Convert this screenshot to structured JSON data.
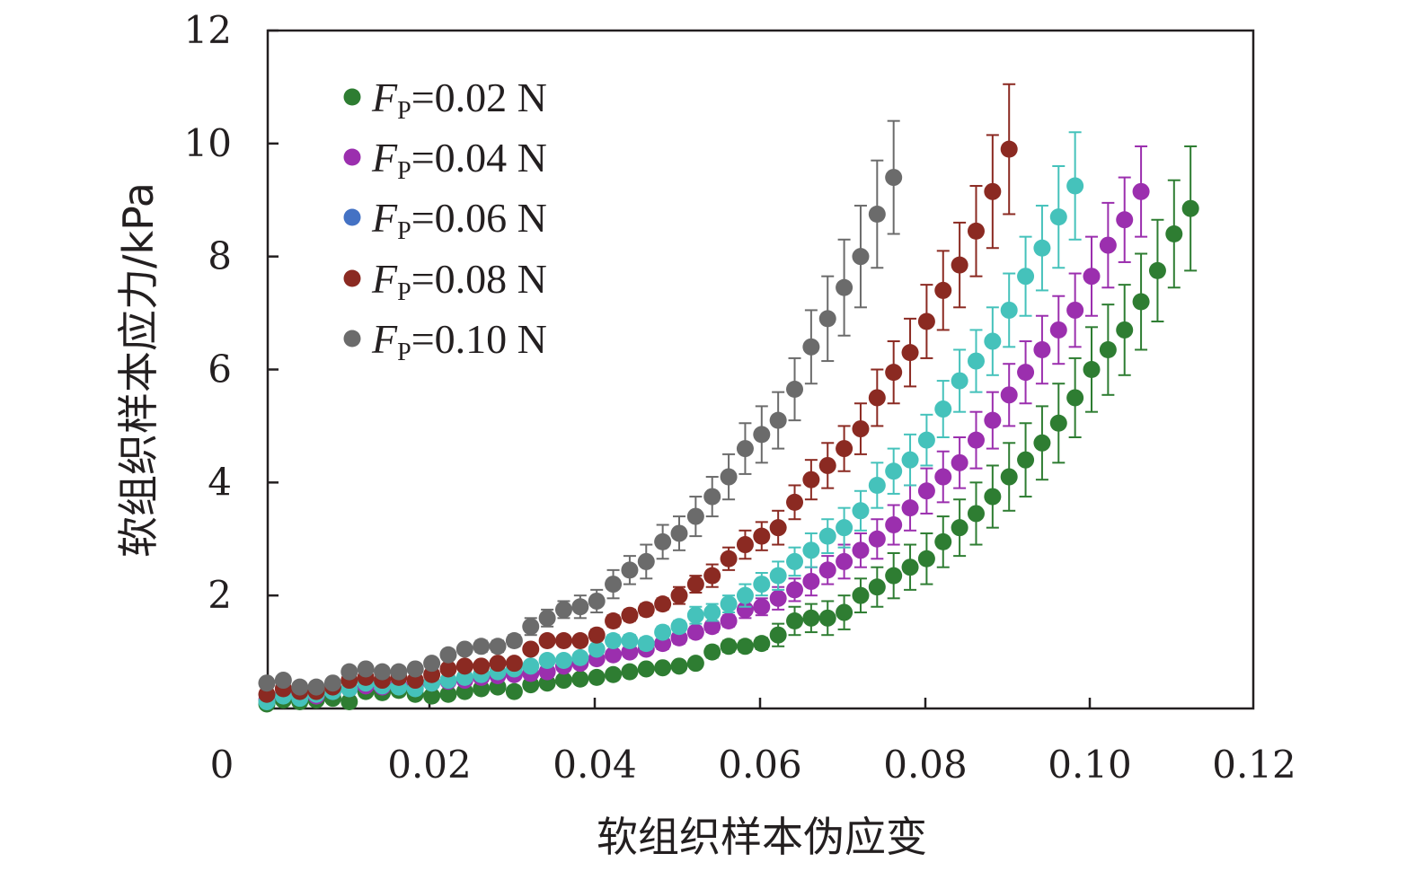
{
  "chart_data": {
    "type": "scatter",
    "title": "",
    "xlabel": "软组织样本伪应变",
    "ylabel": "软组织样本应力/kPa",
    "xlim": [
      0,
      0.12
    ],
    "ylim": [
      0,
      12
    ],
    "x_ticks": [
      "0",
      "0.02",
      "0.04",
      "0.06",
      "0.08",
      "0.10",
      "0.12"
    ],
    "y_ticks": [
      "2",
      "4",
      "6",
      "8",
      "10",
      "12"
    ],
    "legend_position": "top-left",
    "grid": false,
    "series": [
      {
        "name": "0.02 N",
        "legend_prefix": "F",
        "legend_sub": "P",
        "color": "#2e7d32",
        "x": [
          0.0,
          0.002,
          0.004,
          0.006,
          0.008,
          0.01,
          0.012,
          0.014,
          0.016,
          0.018,
          0.02,
          0.022,
          0.024,
          0.026,
          0.028,
          0.03,
          0.032,
          0.034,
          0.036,
          0.038,
          0.04,
          0.042,
          0.044,
          0.046,
          0.048,
          0.05,
          0.052,
          0.054,
          0.056,
          0.058,
          0.06,
          0.062,
          0.064,
          0.066,
          0.068,
          0.07,
          0.072,
          0.074,
          0.076,
          0.078,
          0.08,
          0.082,
          0.084,
          0.086,
          0.088,
          0.09,
          0.092,
          0.094,
          0.096,
          0.098,
          0.1,
          0.102,
          0.104,
          0.106,
          0.108,
          0.11,
          0.112
        ],
        "y": [
          0.08,
          0.15,
          0.12,
          0.15,
          0.18,
          0.12,
          0.3,
          0.28,
          0.32,
          0.25,
          0.22,
          0.25,
          0.3,
          0.35,
          0.38,
          0.3,
          0.42,
          0.45,
          0.5,
          0.52,
          0.55,
          0.6,
          0.65,
          0.7,
          0.72,
          0.75,
          0.8,
          1.0,
          1.1,
          1.1,
          1.15,
          1.3,
          1.55,
          1.6,
          1.6,
          1.7,
          2.0,
          2.15,
          2.35,
          2.5,
          2.65,
          2.95,
          3.2,
          3.45,
          3.75,
          4.1,
          4.4,
          4.7,
          5.05,
          5.5,
          6.0,
          6.35,
          6.7,
          7.2,
          7.75,
          8.4,
          8.85
        ],
        "err": [
          0.05,
          0.05,
          0.05,
          0.05,
          0.05,
          0.05,
          0.05,
          0.05,
          0.05,
          0.05,
          0.05,
          0.05,
          0.05,
          0.05,
          0.05,
          0.05,
          0.05,
          0.05,
          0.05,
          0.05,
          0.05,
          0.05,
          0.05,
          0.05,
          0.05,
          0.05,
          0.08,
          0.1,
          0.1,
          0.1,
          0.1,
          0.2,
          0.25,
          0.25,
          0.3,
          0.3,
          0.3,
          0.35,
          0.4,
          0.4,
          0.45,
          0.45,
          0.5,
          0.55,
          0.55,
          0.6,
          0.65,
          0.65,
          0.7,
          0.7,
          0.75,
          0.8,
          0.8,
          0.85,
          0.9,
          0.95,
          1.1
        ]
      },
      {
        "name": "0.04 N",
        "legend_prefix": "F",
        "legend_sub": "P",
        "color": "#9b2fae",
        "x": [
          0.0,
          0.002,
          0.004,
          0.006,
          0.008,
          0.01,
          0.012,
          0.014,
          0.016,
          0.018,
          0.02,
          0.022,
          0.024,
          0.026,
          0.028,
          0.03,
          0.032,
          0.034,
          0.036,
          0.038,
          0.04,
          0.042,
          0.044,
          0.046,
          0.048,
          0.05,
          0.052,
          0.054,
          0.056,
          0.058,
          0.06,
          0.062,
          0.064,
          0.066,
          0.068,
          0.07,
          0.072,
          0.074,
          0.076,
          0.078,
          0.08,
          0.082,
          0.084,
          0.086,
          0.088,
          0.09,
          0.092,
          0.094,
          0.096,
          0.098,
          0.1,
          0.102,
          0.104,
          0.106
        ],
        "y": [
          0.15,
          0.25,
          0.2,
          0.22,
          0.3,
          0.35,
          0.4,
          0.38,
          0.42,
          0.4,
          0.45,
          0.48,
          0.5,
          0.55,
          0.58,
          0.6,
          0.62,
          0.65,
          0.75,
          0.8,
          0.88,
          0.95,
          1.0,
          1.05,
          1.15,
          1.25,
          1.35,
          1.45,
          1.55,
          1.75,
          1.8,
          1.95,
          2.1,
          2.25,
          2.45,
          2.6,
          2.8,
          3.0,
          3.25,
          3.55,
          3.85,
          4.1,
          4.35,
          4.75,
          5.1,
          5.55,
          5.95,
          6.35,
          6.7,
          7.05,
          7.65,
          8.2,
          8.65,
          9.15
        ],
        "err": [
          0.05,
          0.05,
          0.05,
          0.05,
          0.05,
          0.05,
          0.05,
          0.05,
          0.05,
          0.05,
          0.05,
          0.05,
          0.05,
          0.05,
          0.05,
          0.05,
          0.05,
          0.05,
          0.05,
          0.05,
          0.05,
          0.05,
          0.05,
          0.05,
          0.1,
          0.1,
          0.1,
          0.1,
          0.1,
          0.15,
          0.15,
          0.2,
          0.2,
          0.25,
          0.25,
          0.3,
          0.3,
          0.35,
          0.35,
          0.4,
          0.4,
          0.45,
          0.45,
          0.5,
          0.5,
          0.55,
          0.55,
          0.6,
          0.6,
          0.65,
          0.7,
          0.75,
          0.75,
          0.8
        ]
      },
      {
        "name": "0.06 N",
        "legend_prefix": "F",
        "legend_sub": "P",
        "color": "#4472c4",
        "marker_color": "#45c2bb",
        "x": [
          0.0,
          0.002,
          0.004,
          0.006,
          0.008,
          0.01,
          0.012,
          0.014,
          0.016,
          0.018,
          0.02,
          0.022,
          0.024,
          0.026,
          0.028,
          0.03,
          0.032,
          0.034,
          0.036,
          0.038,
          0.04,
          0.042,
          0.044,
          0.046,
          0.048,
          0.05,
          0.052,
          0.054,
          0.056,
          0.058,
          0.06,
          0.062,
          0.064,
          0.066,
          0.068,
          0.07,
          0.072,
          0.074,
          0.076,
          0.078,
          0.08,
          0.082,
          0.084,
          0.086,
          0.088,
          0.09,
          0.092,
          0.094,
          0.096,
          0.098
        ],
        "y": [
          0.12,
          0.22,
          0.18,
          0.25,
          0.3,
          0.35,
          0.45,
          0.4,
          0.38,
          0.35,
          0.45,
          0.5,
          0.55,
          0.6,
          0.65,
          0.7,
          0.75,
          0.85,
          0.85,
          0.9,
          1.05,
          1.2,
          1.2,
          1.15,
          1.35,
          1.45,
          1.65,
          1.7,
          1.85,
          2.0,
          2.2,
          2.35,
          2.6,
          2.8,
          3.05,
          3.2,
          3.5,
          3.95,
          4.2,
          4.4,
          4.75,
          5.3,
          5.8,
          6.15,
          6.5,
          7.05,
          7.65,
          8.15,
          8.7,
          9.25
        ],
        "err": [
          0.05,
          0.05,
          0.05,
          0.05,
          0.05,
          0.05,
          0.05,
          0.05,
          0.05,
          0.05,
          0.05,
          0.05,
          0.05,
          0.05,
          0.05,
          0.05,
          0.05,
          0.05,
          0.05,
          0.05,
          0.05,
          0.1,
          0.1,
          0.1,
          0.1,
          0.1,
          0.15,
          0.15,
          0.15,
          0.2,
          0.2,
          0.25,
          0.25,
          0.3,
          0.3,
          0.35,
          0.35,
          0.4,
          0.4,
          0.45,
          0.45,
          0.5,
          0.55,
          0.55,
          0.6,
          0.65,
          0.7,
          0.75,
          0.9,
          0.95
        ]
      },
      {
        "name": "0.08 N",
        "legend_prefix": "F",
        "legend_sub": "P",
        "color": "#8b2a22",
        "x": [
          0.0,
          0.002,
          0.004,
          0.006,
          0.008,
          0.01,
          0.012,
          0.014,
          0.016,
          0.018,
          0.02,
          0.022,
          0.024,
          0.026,
          0.028,
          0.03,
          0.032,
          0.034,
          0.036,
          0.038,
          0.04,
          0.042,
          0.044,
          0.046,
          0.048,
          0.05,
          0.052,
          0.054,
          0.056,
          0.058,
          0.06,
          0.062,
          0.064,
          0.066,
          0.068,
          0.07,
          0.072,
          0.074,
          0.076,
          0.078,
          0.08,
          0.082,
          0.084,
          0.086,
          0.088,
          0.09
        ],
        "y": [
          0.25,
          0.35,
          0.3,
          0.3,
          0.38,
          0.5,
          0.55,
          0.5,
          0.55,
          0.5,
          0.6,
          0.7,
          0.75,
          0.75,
          0.8,
          0.8,
          1.05,
          1.2,
          1.2,
          1.2,
          1.3,
          1.55,
          1.65,
          1.75,
          1.85,
          2.0,
          2.2,
          2.35,
          2.65,
          2.9,
          3.05,
          3.2,
          3.65,
          4.05,
          4.3,
          4.6,
          4.95,
          5.5,
          5.95,
          6.3,
          6.85,
          7.4,
          7.85,
          8.45,
          9.15,
          9.9
        ],
        "err": [
          0.05,
          0.05,
          0.05,
          0.05,
          0.05,
          0.05,
          0.05,
          0.05,
          0.05,
          0.05,
          0.05,
          0.05,
          0.05,
          0.05,
          0.05,
          0.05,
          0.05,
          0.05,
          0.05,
          0.05,
          0.1,
          0.1,
          0.1,
          0.1,
          0.1,
          0.15,
          0.15,
          0.2,
          0.2,
          0.25,
          0.25,
          0.3,
          0.3,
          0.35,
          0.4,
          0.4,
          0.45,
          0.5,
          0.55,
          0.6,
          0.65,
          0.7,
          0.75,
          0.8,
          1.0,
          1.15
        ]
      },
      {
        "name": "0.10 N",
        "legend_prefix": "F",
        "legend_sub": "P",
        "color": "#6b6b6b",
        "x": [
          0.0,
          0.002,
          0.004,
          0.006,
          0.008,
          0.01,
          0.012,
          0.014,
          0.016,
          0.018,
          0.02,
          0.022,
          0.024,
          0.026,
          0.028,
          0.03,
          0.032,
          0.034,
          0.036,
          0.038,
          0.04,
          0.042,
          0.044,
          0.046,
          0.048,
          0.05,
          0.052,
          0.054,
          0.056,
          0.058,
          0.06,
          0.062,
          0.064,
          0.066,
          0.068,
          0.07,
          0.072,
          0.074,
          0.076
        ],
        "y": [
          0.45,
          0.5,
          0.38,
          0.38,
          0.45,
          0.65,
          0.7,
          0.65,
          0.65,
          0.7,
          0.8,
          0.95,
          1.05,
          1.1,
          1.1,
          1.2,
          1.45,
          1.6,
          1.75,
          1.8,
          1.9,
          2.2,
          2.45,
          2.6,
          2.95,
          3.1,
          3.4,
          3.75,
          4.1,
          4.6,
          4.85,
          5.1,
          5.65,
          6.4,
          6.9,
          7.45,
          8.0,
          8.75,
          9.4
        ],
        "err": [
          0.05,
          0.05,
          0.05,
          0.05,
          0.05,
          0.05,
          0.05,
          0.05,
          0.05,
          0.05,
          0.05,
          0.05,
          0.05,
          0.1,
          0.1,
          0.1,
          0.15,
          0.15,
          0.15,
          0.2,
          0.2,
          0.25,
          0.25,
          0.3,
          0.3,
          0.3,
          0.35,
          0.35,
          0.4,
          0.45,
          0.5,
          0.5,
          0.55,
          0.65,
          0.75,
          0.85,
          0.9,
          0.95,
          1.0
        ]
      }
    ]
  }
}
